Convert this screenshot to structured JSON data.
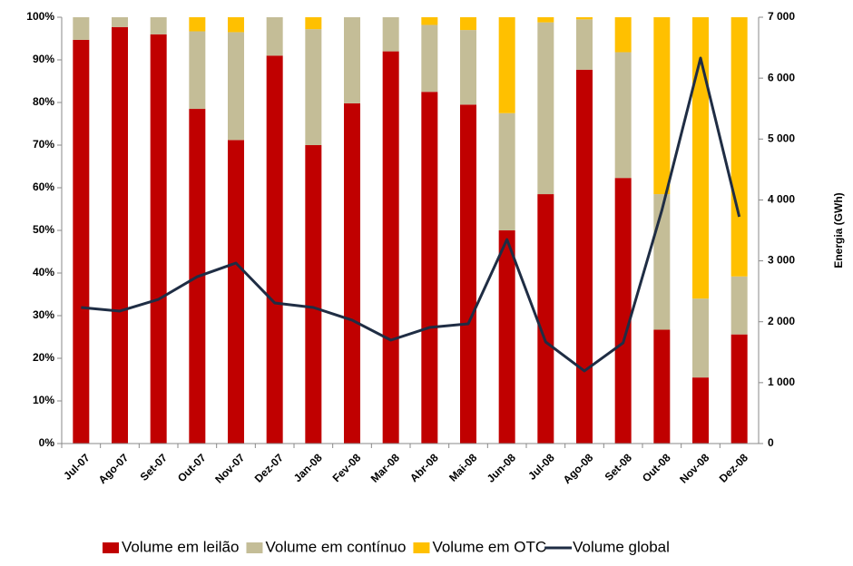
{
  "chart_data": {
    "type": "bar",
    "stacked": true,
    "categories": [
      "Jul-07",
      "Ago-07",
      "Set-07",
      "Out-07",
      "Nov-07",
      "Dez-07",
      "Jan-08",
      "Fev-08",
      "Mar-08",
      "Abr-08",
      "Mai-08",
      "Jun-08",
      "Jul-08",
      "Ago-08",
      "Set-08",
      "Out-08",
      "Nov-08",
      "Dez-08"
    ],
    "series": [
      {
        "name": "Volume em leilão",
        "color": "#c00000",
        "values": [
          94.7,
          97.7,
          96,
          78.5,
          71.2,
          91,
          70,
          79.8,
          92,
          82.5,
          79.5,
          50,
          58.5,
          87.7,
          62.3,
          26.7,
          15.5,
          25.6
        ]
      },
      {
        "name": "Volume em contínuo",
        "color": "#c4bd97",
        "values": [
          5.3,
          2.3,
          4,
          18.2,
          25.3,
          9,
          27.2,
          20.2,
          8,
          15.7,
          17.5,
          27.5,
          40.3,
          11.8,
          29.5,
          31.8,
          18.5,
          13.6
        ]
      },
      {
        "name": "Volume em OTC",
        "color": "#ffc000",
        "values": [
          0,
          0,
          0,
          3.3,
          3.5,
          0,
          2.8,
          0,
          0,
          1.8,
          3,
          22.5,
          1.2,
          0.5,
          8.2,
          41.5,
          66,
          60.8
        ]
      },
      {
        "name": "Volume global",
        "color": "#1f2d44",
        "type": "line",
        "axis": "y2",
        "values": [
          2234,
          2175,
          2368,
          2740,
          2964,
          2309,
          2234,
          2026,
          1698,
          1906,
          1966,
          3351,
          1668,
          1192,
          1653,
          3828,
          6330,
          3724
        ]
      }
    ],
    "ylim": [
      0,
      100
    ],
    "yticks": [
      {
        "value": 0,
        "label": "0%"
      },
      {
        "value": 10,
        "label": "10%"
      },
      {
        "value": 20,
        "label": "20%"
      },
      {
        "value": 30,
        "label": "30%"
      },
      {
        "value": 40,
        "label": "40%"
      },
      {
        "value": 50,
        "label": "50%"
      },
      {
        "value": 60,
        "label": "60%"
      },
      {
        "value": 70,
        "label": "70%"
      },
      {
        "value": 80,
        "label": "80%"
      },
      {
        "value": 90,
        "label": "90%"
      },
      {
        "value": 100,
        "label": "100%"
      }
    ],
    "y2lim": [
      0,
      7000
    ],
    "y2ticks": [
      0,
      {
        "value": 1000,
        "label": "1 000"
      },
      {
        "value": 2000,
        "label": "2 000"
      },
      {
        "value": 3000,
        "label": "3 000"
      },
      {
        "value": 4000,
        "label": "4 000"
      },
      {
        "value": 5000,
        "label": "5 000"
      },
      {
        "value": 6000,
        "label": "6 000"
      },
      {
        "value": 7000,
        "label": "7 000"
      }
    ],
    "y2label": "Energia (GWh)",
    "grid": false,
    "legend": "bottom"
  }
}
